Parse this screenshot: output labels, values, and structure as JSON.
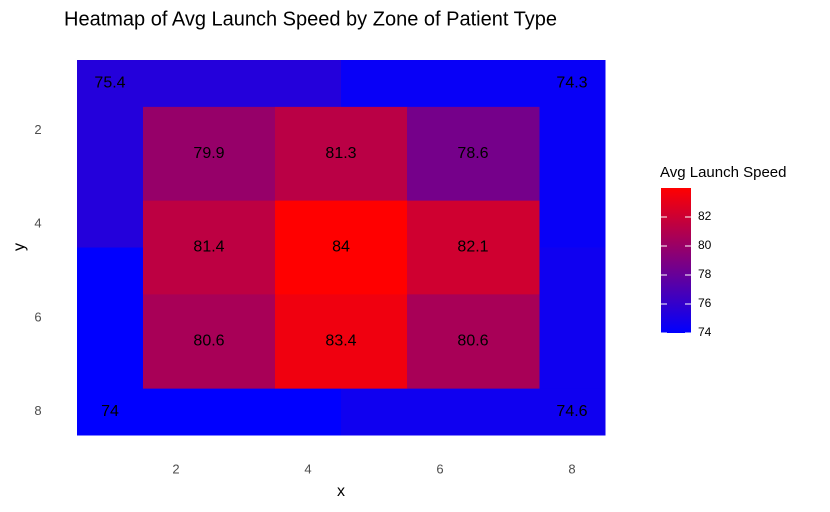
{
  "chart_data": {
    "type": "heatmap",
    "title": "Heatmap of Avg Launch Speed by Zone of Patient Type",
    "xlabel": "x",
    "ylabel": "y",
    "xlim": [
      0.5,
      8.5
    ],
    "xticks": [
      2,
      4,
      6,
      8
    ],
    "ylim": [
      0.5,
      8.5
    ],
    "yticks": [
      2,
      4,
      6,
      8
    ],
    "y_reversed": true,
    "legend_title": "Avg Launch Speed",
    "low_color": "#0000ff",
    "high_color": "#ff0000",
    "colorbar_lim": [
      74,
      84
    ],
    "colorbar_ticks": [
      74,
      76,
      78,
      80,
      82
    ],
    "zones": [
      {
        "value": 75.4,
        "label_x": 1,
        "label_y": 1,
        "tiles": [
          [
            0.5,
            4.5,
            0.5,
            1.5
          ],
          [
            0.5,
            1.5,
            1.5,
            4.5
          ]
        ]
      },
      {
        "value": 74.3,
        "label_x": 8,
        "label_y": 1,
        "tiles": [
          [
            4.5,
            8.5,
            0.5,
            1.5
          ],
          [
            7.5,
            8.5,
            1.5,
            4.5
          ]
        ]
      },
      {
        "value": 74,
        "label_x": 1,
        "label_y": 8,
        "tiles": [
          [
            0.5,
            1.5,
            4.5,
            7.5
          ],
          [
            0.5,
            4.5,
            7.5,
            8.5
          ]
        ]
      },
      {
        "value": 74.6,
        "label_x": 8,
        "label_y": 8,
        "tiles": [
          [
            7.5,
            8.5,
            4.5,
            7.5
          ],
          [
            4.5,
            8.5,
            7.5,
            8.5
          ]
        ]
      },
      {
        "value": 79.9,
        "label_x": 2.5,
        "label_y": 2.5,
        "tiles": [
          [
            1.5,
            3.5,
            1.5,
            3.5
          ]
        ]
      },
      {
        "value": 81.3,
        "label_x": 4.5,
        "label_y": 2.5,
        "tiles": [
          [
            3.5,
            5.5,
            1.5,
            3.5
          ]
        ]
      },
      {
        "value": 78.6,
        "label_x": 6.5,
        "label_y": 2.5,
        "tiles": [
          [
            5.5,
            7.5,
            1.5,
            3.5
          ]
        ]
      },
      {
        "value": 81.4,
        "label_x": 2.5,
        "label_y": 4.5,
        "tiles": [
          [
            1.5,
            3.5,
            3.5,
            5.5
          ]
        ]
      },
      {
        "value": 84,
        "label_x": 4.5,
        "label_y": 4.5,
        "tiles": [
          [
            3.5,
            5.5,
            3.5,
            5.5
          ]
        ]
      },
      {
        "value": 82.1,
        "label_x": 6.5,
        "label_y": 4.5,
        "tiles": [
          [
            5.5,
            7.5,
            3.5,
            5.5
          ]
        ]
      },
      {
        "value": 80.6,
        "label_x": 2.5,
        "label_y": 6.5,
        "tiles": [
          [
            1.5,
            3.5,
            5.5,
            7.5
          ]
        ]
      },
      {
        "value": 83.4,
        "label_x": 4.5,
        "label_y": 6.5,
        "tiles": [
          [
            3.5,
            5.5,
            5.5,
            7.5
          ]
        ]
      },
      {
        "value": 80.6,
        "label_x": 6.5,
        "label_y": 6.5,
        "tiles": [
          [
            5.5,
            7.5,
            5.5,
            7.5
          ]
        ]
      }
    ]
  }
}
